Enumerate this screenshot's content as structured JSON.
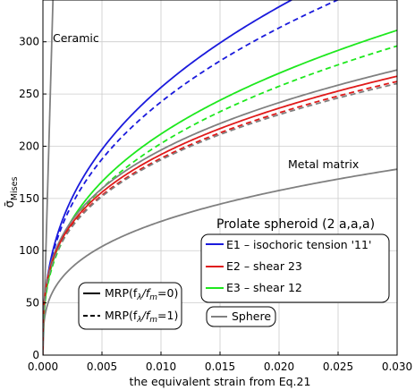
{
  "chart_data": {
    "type": "line",
    "title": "",
    "xlabel": "the equivalent strain from Eq.21",
    "ylabel_main": "σ̄",
    "ylabel_sub": "Mises",
    "xlim": [
      0.0,
      0.03
    ],
    "ylim": [
      0,
      340
    ],
    "grid": true,
    "xticks": [
      "0.000",
      "0.005",
      "0.010",
      "0.015",
      "0.020",
      "0.025",
      "0.030"
    ],
    "yticks": [
      "0",
      "50",
      "100",
      "150",
      "200",
      "250",
      "300"
    ],
    "annotations": {
      "ceramic": "Ceramic",
      "metal_matrix": "Metal matrix",
      "prolate": "Prolate spheroid (2 a,a,a)"
    },
    "legend_grains": {
      "placement": "center-right",
      "entries": [
        {
          "label": "E1 – isochoric tension '11'",
          "color": "#1a1adc"
        },
        {
          "label": "E2 – shear 23",
          "color": "#e01a1a"
        },
        {
          "label": "E3 – shear 12",
          "color": "#1ee81e"
        }
      ]
    },
    "legend_styles": {
      "placement": "lower-left",
      "entries": [
        {
          "label": "MRP(f",
          "sub1": "λ",
          "mid": "/f",
          "sub2": "m",
          "tail": "=0)",
          "dash": "solid"
        },
        {
          "label": "MRP(f",
          "sub1": "λ",
          "mid": "/f",
          "sub2": "m",
          "tail": "=1)",
          "dash": "dashed"
        }
      ]
    },
    "legend_sphere": {
      "placement": "lower-center",
      "label": "Sphere",
      "color": "#808080"
    },
    "series": [
      {
        "group": "ceramic",
        "color": "#808080",
        "dash": "solid",
        "model": {
          "kind": "linear",
          "slope": 400000
        }
      },
      {
        "group": "metal-matrix",
        "color": "#808080",
        "dash": "solid",
        "model": {
          "kind": "power",
          "y30": 178,
          "n": 0.3
        }
      },
      {
        "group": "E1",
        "color": "#1a1adc",
        "dash": "solid",
        "model": {
          "kind": "power",
          "y30": 389,
          "n": 0.38
        }
      },
      {
        "group": "E1",
        "color": "#1a1adc",
        "dash": "dashed",
        "model": {
          "kind": "power",
          "y30": 364,
          "n": 0.37
        }
      },
      {
        "group": "E3",
        "color": "#1ee81e",
        "dash": "solid",
        "model": {
          "kind": "power",
          "y30": 311,
          "n": 0.35
        }
      },
      {
        "group": "E3",
        "color": "#1ee81e",
        "dash": "dashed",
        "model": {
          "kind": "power",
          "y30": 296,
          "n": 0.345
        }
      },
      {
        "group": "Sphere",
        "color": "#808080",
        "dash": "solid",
        "model": {
          "kind": "power",
          "y30": 273,
          "n": 0.3
        }
      },
      {
        "group": "E2",
        "color": "#e01a1a",
        "dash": "solid",
        "model": {
          "kind": "power",
          "y30": 267,
          "n": 0.3
        }
      },
      {
        "group": "E2",
        "color": "#e01a1a",
        "dash": "dashed",
        "model": {
          "kind": "power",
          "y30": 262,
          "n": 0.3
        }
      },
      {
        "group": "Sphere",
        "color": "#808080",
        "dash": "dashed",
        "model": {
          "kind": "power",
          "y30": 260,
          "n": 0.3
        }
      }
    ]
  }
}
